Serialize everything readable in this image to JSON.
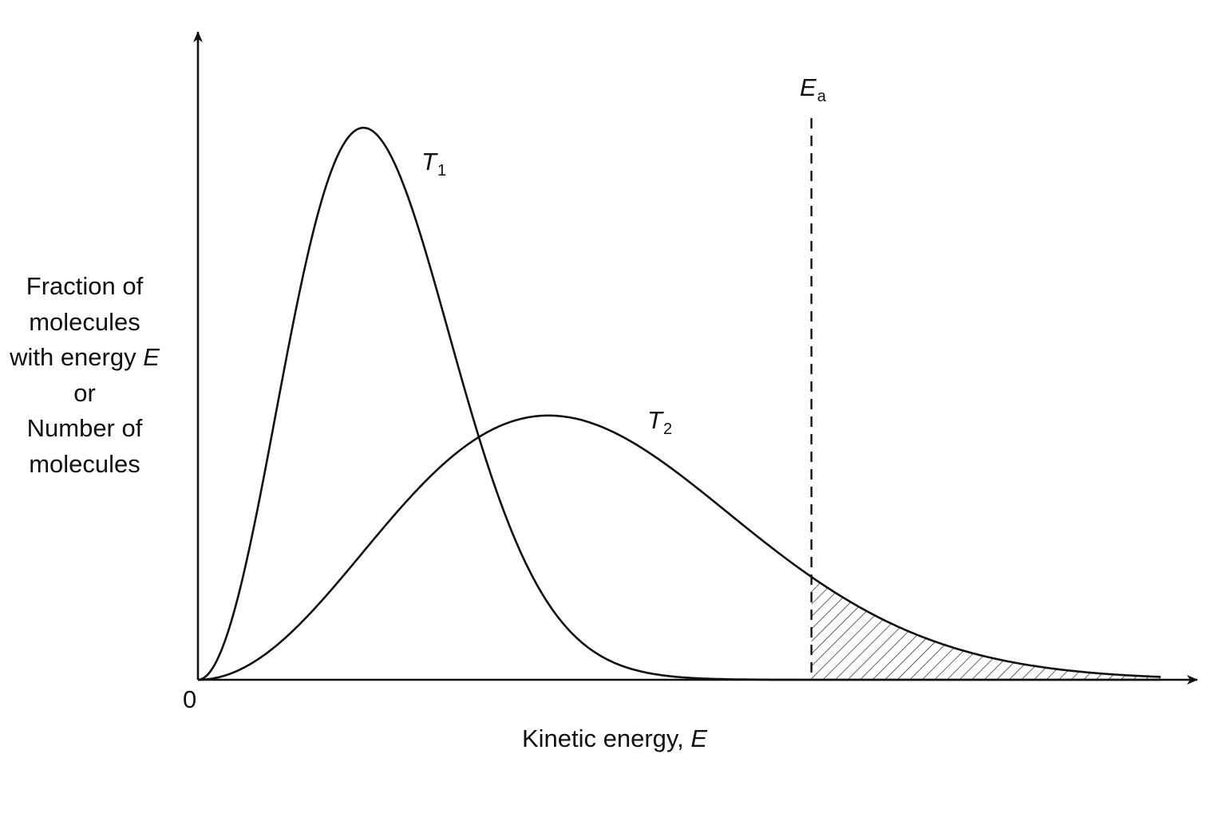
{
  "diagram": {
    "y_axis_label": {
      "lines": [
        "Fraction of",
        "molecules",
        "with energy ",
        "or",
        "Number of",
        "molecules"
      ],
      "energy_symbol": "E"
    },
    "x_axis_label": {
      "text": "Kinetic energy, ",
      "symbol": "E"
    },
    "origin_label": "0",
    "curves": [
      {
        "symbol": "T",
        "subscript": "1",
        "peak_position": 0.17,
        "peak_height": 0.94
      },
      {
        "symbol": "T",
        "subscript": "2",
        "peak_position": 0.36,
        "peak_height": 0.45
      }
    ],
    "activation_energy": {
      "symbol": "E",
      "subscript": "a",
      "position": 0.63
    },
    "shaded_region": "area under T2 curve beyond Ea"
  }
}
